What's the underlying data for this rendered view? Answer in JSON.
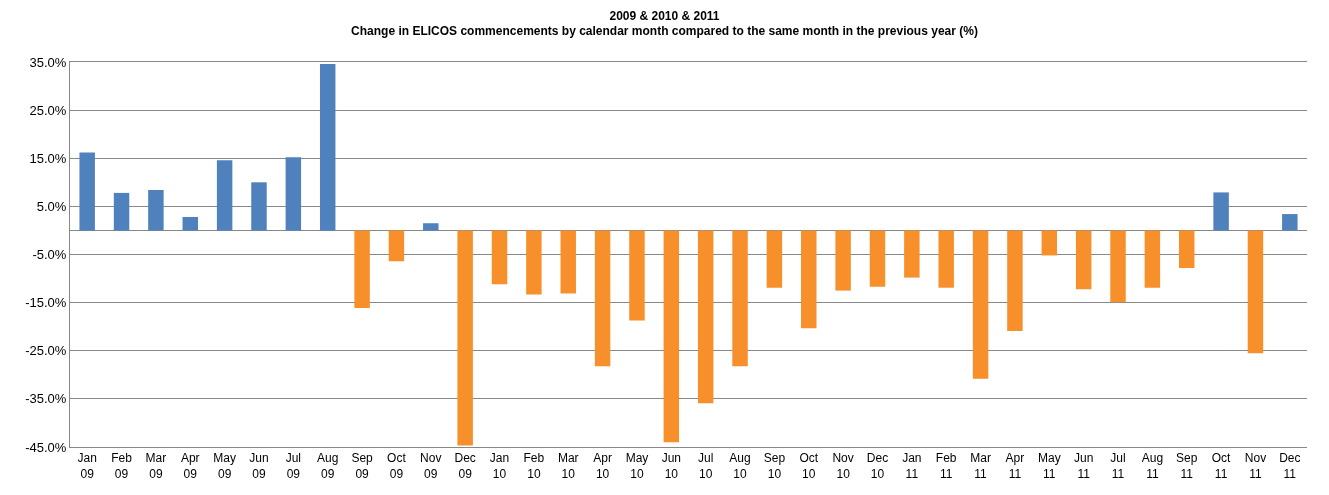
{
  "chart_data": {
    "type": "bar",
    "title": "2009 & 2010 & 2011",
    "subtitle": "Change in ELICOS commencements by calendar month compared to the same month in the previous year (%)",
    "categories": [
      "Jan\n09",
      "Feb\n09",
      "Mar\n09",
      "Apr\n09",
      "May\n09",
      "Jun\n09",
      "Jul\n09",
      "Aug\n09",
      "Sep\n09",
      "Oct\n09",
      "Nov\n09",
      "Dec\n09",
      "Jan\n10",
      "Feb\n10",
      "Mar\n10",
      "Apr\n10",
      "May\n10",
      "Jun\n10",
      "Jul\n10",
      "Aug\n10",
      "Sep\n10",
      "Oct\n10",
      "Nov\n10",
      "Dec\n10",
      "Jan\n11",
      "Feb\n11",
      "Mar\n11",
      "Apr\n11",
      "May\n11",
      "Jun\n11",
      "Jul\n11",
      "Aug\n11",
      "Sep\n11",
      "Oct\n11",
      "Nov\n11",
      "Dec\n11"
    ],
    "values": [
      16.2,
      7.8,
      8.4,
      2.8,
      14.6,
      10.0,
      15.2,
      34.6,
      -16.1,
      -6.4,
      1.5,
      -44.7,
      -11.2,
      -13.3,
      -13.1,
      -28.2,
      -18.7,
      -44.0,
      -35.9,
      -28.2,
      -11.9,
      -20.3,
      -12.5,
      -11.7,
      -9.8,
      -11.9,
      -30.8,
      -20.9,
      -5.2,
      -12.2,
      -14.9,
      -11.9,
      -7.8,
      7.9,
      -25.5,
      3.4
    ],
    "colors": [
      "#4f81bd",
      "#4f81bd",
      "#4f81bd",
      "#4f81bd",
      "#4f81bd",
      "#4f81bd",
      "#4f81bd",
      "#4f81bd",
      "#f7902a",
      "#f7902a",
      "#4f81bd",
      "#f7902a",
      "#f7902a",
      "#f7902a",
      "#f7902a",
      "#f7902a",
      "#f7902a",
      "#f7902a",
      "#f7902a",
      "#f7902a",
      "#f7902a",
      "#f7902a",
      "#f7902a",
      "#f7902a",
      "#f7902a",
      "#f7902a",
      "#f7902a",
      "#f7902a",
      "#f7902a",
      "#f7902a",
      "#f7902a",
      "#f7902a",
      "#f7902a",
      "#4f81bd",
      "#f7902a",
      "#4f81bd"
    ],
    "ylim": [
      -45,
      35
    ],
    "yticks": [
      {
        "value": -45,
        "label": "-45.0%"
      },
      {
        "value": -35,
        "label": "-35.0%"
      },
      {
        "value": -25,
        "label": "-25.0%"
      },
      {
        "value": -15,
        "label": "-15.0%"
      },
      {
        "value": -5,
        "label": "-5.0%"
      },
      {
        "value": 5,
        "label": "5.0%"
      },
      {
        "value": 15,
        "label": "15.0%"
      },
      {
        "value": 25,
        "label": "25.0%"
      },
      {
        "value": 35,
        "label": "35.0%"
      }
    ],
    "grid": "y"
  }
}
